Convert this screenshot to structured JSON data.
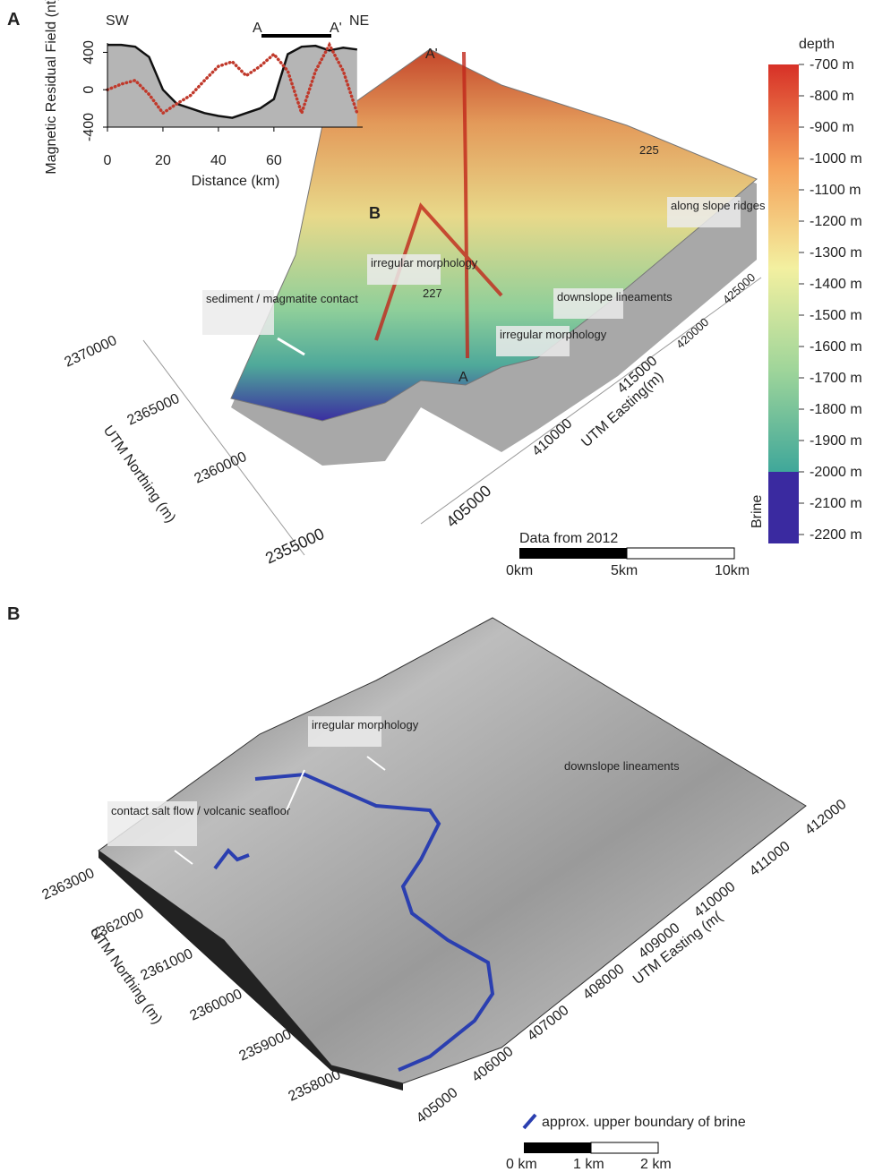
{
  "chart_data": {
    "type": "line",
    "x": [
      0,
      5,
      10,
      15,
      20,
      25,
      30,
      35,
      40,
      45,
      50,
      55,
      60,
      65,
      70,
      75,
      80,
      85,
      90
    ],
    "series": [
      {
        "name": "Magnetic Residual Field (nt)",
        "color": "#c0392b",
        "values": [
          0,
          60,
          100,
          -50,
          -250,
          -150,
          -60,
          100,
          250,
          300,
          150,
          250,
          380,
          200,
          -250,
          200,
          480,
          200,
          -250
        ]
      },
      {
        "color": "#111111",
        "values": [
          480,
          480,
          460,
          350,
          0,
          -150,
          -200,
          -250,
          -280,
          -300,
          -250,
          -200,
          -100,
          380,
          460,
          470,
          420,
          450,
          430
        ]
      }
    ],
    "xlabel": "Distance (km)",
    "xlim": [
      0,
      92
    ],
    "xticks": [
      0,
      20,
      40,
      60
    ],
    "ylim": [
      -400,
      500
    ],
    "yticks": [
      -400,
      0,
      400
    ],
    "labels": {
      "left": "SW",
      "right": "NE",
      "start": "A",
      "end": "A'"
    }
  },
  "panel_a": {
    "label": "A",
    "annotations": [
      "A'",
      "B",
      "225",
      "along slope ridges",
      "irregular morphology",
      "227",
      "downslope lineaments",
      "sediment / magmatite contact",
      "irregular morphology",
      "A"
    ],
    "northing_ticks": [
      "2370000",
      "2365000",
      "2360000",
      "2355000"
    ],
    "northing_label": "UTM Northing (m)",
    "easting_ticks": [
      "405000",
      "410000",
      "415000",
      "420000",
      "425000"
    ],
    "easting_label": "UTM Easting(m)",
    "colorbar": {
      "title": "depth",
      "ticks": [
        "-700 m",
        "-800 m",
        "-900 m",
        "-1000 m",
        "-1100 m",
        "-1200 m",
        "-1300 m",
        "-1400 m",
        "-1500 m",
        "-1600 m",
        "-1700 m",
        "-1800 m",
        "-1900 m",
        "-2000 m",
        "-2100 m",
        "-2200 m"
      ],
      "brine": "Brine"
    },
    "scale_bar": {
      "title": "Data from 2012",
      "ticks": [
        "0km",
        "5km",
        "10km"
      ]
    }
  },
  "panel_b": {
    "label": "B",
    "annotations": [
      "irregular morphology",
      "downslope lineaments",
      "contact salt flow / volcanic seafloor"
    ],
    "northing_ticks": [
      "2363000",
      "2362000",
      "2361000",
      "2360000",
      "2359000",
      "2358000"
    ],
    "northing_label": "UTM Northing (m)",
    "easting_ticks": [
      "405000",
      "406000",
      "407000",
      "408000",
      "409000",
      "410000",
      "411000",
      "412000"
    ],
    "easting_label": "UTM Easting (m(",
    "legend": "approx. upper boundary of brine",
    "scale_bar": {
      "ticks": [
        "0 km",
        "1 km",
        "2 km"
      ]
    }
  }
}
